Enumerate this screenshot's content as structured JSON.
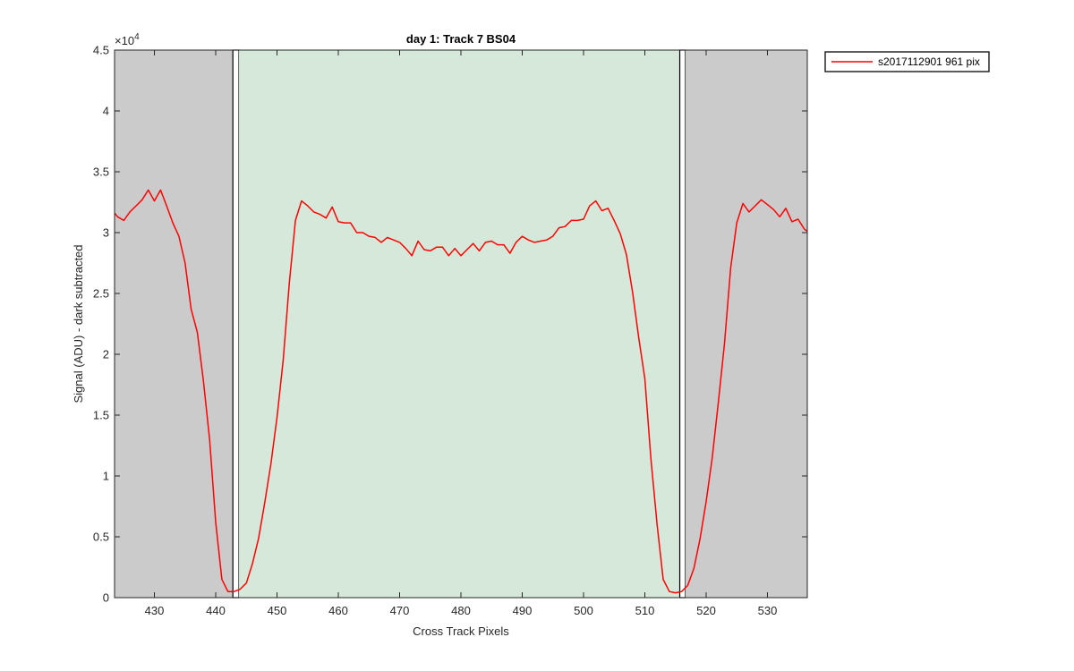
{
  "chart_data": {
    "type": "line",
    "title": "day 1: Track 7  BS04",
    "xlabel": "Cross Track Pixels",
    "ylabel": "Signal (ADU) - dark subtracted",
    "exponent_label": "×10",
    "exponent_power": "4",
    "xlim": [
      423.5,
      536.5
    ],
    "ylim": [
      0,
      45000
    ],
    "xticks": [
      430,
      440,
      450,
      460,
      470,
      480,
      490,
      500,
      510,
      520,
      530
    ],
    "yticks": [
      0,
      5000,
      10000,
      15000,
      20000,
      25000,
      30000,
      35000,
      40000,
      45000
    ],
    "ytick_labels": [
      "0",
      "0.5",
      "1",
      "1.5",
      "2",
      "2.5",
      "3",
      "3.5",
      "4",
      "4.5"
    ],
    "grid": false,
    "legend_position": "outside-top-right",
    "regions": [
      {
        "kind": "excluded",
        "x0": 423.5,
        "x1": 442.8,
        "color": "#cbcbcb"
      },
      {
        "kind": "boundary",
        "x0": 442.8,
        "x1": 443.8,
        "color": "#ffffff"
      },
      {
        "kind": "included",
        "x0": 443.8,
        "x1": 515.7,
        "color": "#d5e8d9"
      },
      {
        "kind": "boundary",
        "x0": 515.7,
        "x1": 516.6,
        "color": "#ffffff"
      },
      {
        "kind": "excluded",
        "x0": 516.6,
        "x1": 536.5,
        "color": "#cbcbcb"
      }
    ],
    "series": [
      {
        "name": "s2017112901 961 pix",
        "color": "#ff0000",
        "x": [
          423.5,
          424,
          425,
          426,
          427,
          428,
          429,
          430,
          431,
          432,
          433,
          434,
          435,
          436,
          437,
          438,
          439,
          440,
          441,
          442,
          443,
          444,
          445,
          446,
          447,
          448,
          449,
          450,
          451,
          452,
          453,
          454,
          455,
          456,
          457,
          458,
          459,
          460,
          461,
          462,
          463,
          464,
          465,
          466,
          467,
          468,
          469,
          470,
          471,
          472,
          473,
          474,
          475,
          476,
          477,
          478,
          479,
          480,
          481,
          482,
          483,
          484,
          485,
          486,
          487,
          488,
          489,
          490,
          491,
          492,
          493,
          494,
          495,
          496,
          497,
          498,
          499,
          500,
          501,
          502,
          503,
          504,
          505,
          506,
          507,
          508,
          509,
          510,
          511,
          512,
          513,
          514,
          515,
          516,
          517,
          518,
          519,
          520,
          521,
          522,
          523,
          524,
          525,
          526,
          527,
          528,
          529,
          530,
          531,
          532,
          533,
          534,
          535,
          536,
          536.5
        ],
        "y": [
          31600,
          31300,
          31000,
          31700,
          32200,
          32700,
          33500,
          32600,
          33500,
          32200,
          30800,
          29700,
          27500,
          23700,
          21800,
          17800,
          13000,
          6200,
          1500,
          500,
          500,
          700,
          1200,
          2800,
          4900,
          7800,
          11000,
          14800,
          19500,
          25800,
          31000,
          32600,
          32200,
          31700,
          31500,
          31200,
          32100,
          30900,
          30800,
          30800,
          30000,
          30000,
          29700,
          29600,
          29200,
          29600,
          29400,
          29200,
          28700,
          28100,
          29300,
          28600,
          28500,
          28800,
          28800,
          28100,
          28700,
          28100,
          28600,
          29100,
          28500,
          29200,
          29300,
          29000,
          29000,
          28300,
          29200,
          29700,
          29400,
          29200,
          29300,
          29400,
          29700,
          30400,
          30500,
          31000,
          31000,
          31100,
          32200,
          32600,
          31800,
          32000,
          31000,
          29900,
          28200,
          25100,
          21400,
          18000,
          11400,
          6000,
          1500,
          500,
          400,
          500,
          1000,
          2400,
          4800,
          7900,
          11500,
          16100,
          20900,
          27100,
          30800,
          32400,
          31700,
          32200,
          32700,
          32300,
          31900,
          31300,
          32000,
          30900,
          31100,
          30300,
          30100
        ]
      }
    ]
  }
}
